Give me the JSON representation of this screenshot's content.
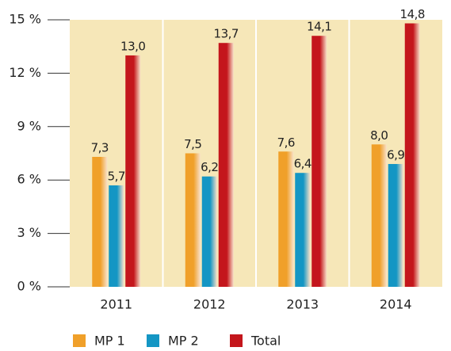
{
  "chart_data": {
    "type": "bar",
    "categories": [
      "2011",
      "2012",
      "2013",
      "2014"
    ],
    "series": [
      {
        "name": "MP 1",
        "color": "#f0a02a",
        "values": [
          7.3,
          7.5,
          7.6,
          8.0
        ],
        "value_labels": [
          "7,3",
          "7,5",
          "7,6",
          "8,0"
        ]
      },
      {
        "name": "MP 2",
        "color": "#1496c4",
        "values": [
          5.7,
          6.2,
          6.4,
          6.9
        ],
        "value_labels": [
          "5,7",
          "6,2",
          "6,4",
          "6,9"
        ]
      },
      {
        "name": "Total",
        "color": "#c4161c",
        "values": [
          13.0,
          13.7,
          14.1,
          14.8
        ],
        "value_labels": [
          "13,0",
          "13,7",
          "14,1",
          "14,8"
        ]
      }
    ],
    "ylim": [
      0,
      15
    ],
    "yticks": [
      {
        "value": 0,
        "label": "0 %"
      },
      {
        "value": 3,
        "label": "3 %"
      },
      {
        "value": 6,
        "label": "6 %"
      },
      {
        "value": 9,
        "label": "9 %"
      },
      {
        "value": 12,
        "label": "12 %"
      },
      {
        "value": 15,
        "label": "15 %"
      }
    ],
    "legend": "bottom-left"
  }
}
